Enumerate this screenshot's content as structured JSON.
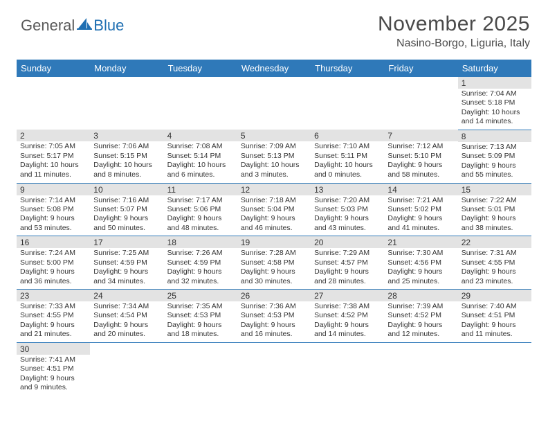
{
  "logo": {
    "text1": "General",
    "text2": "Blue"
  },
  "title": "November 2025",
  "location": "Nasino-Borgo, Liguria, Italy",
  "colors": {
    "header_bg": "#2f79b9",
    "header_text": "#ffffff",
    "daynum_bg": "#e3e3e3",
    "cell_border": "#2f79b9",
    "body_text": "#333333",
    "title_text": "#4a4a4a",
    "logo_gray": "#5a5a5a",
    "logo_blue": "#1f6fb2"
  },
  "weekdays": [
    "Sunday",
    "Monday",
    "Tuesday",
    "Wednesday",
    "Thursday",
    "Friday",
    "Saturday"
  ],
  "weeks": [
    [
      null,
      null,
      null,
      null,
      null,
      null,
      {
        "n": "1",
        "sr": "7:04 AM",
        "ss": "5:18 PM",
        "dl": "10 hours and 14 minutes."
      }
    ],
    [
      {
        "n": "2",
        "sr": "7:05 AM",
        "ss": "5:17 PM",
        "dl": "10 hours and 11 minutes."
      },
      {
        "n": "3",
        "sr": "7:06 AM",
        "ss": "5:15 PM",
        "dl": "10 hours and 8 minutes."
      },
      {
        "n": "4",
        "sr": "7:08 AM",
        "ss": "5:14 PM",
        "dl": "10 hours and 6 minutes."
      },
      {
        "n": "5",
        "sr": "7:09 AM",
        "ss": "5:13 PM",
        "dl": "10 hours and 3 minutes."
      },
      {
        "n": "6",
        "sr": "7:10 AM",
        "ss": "5:11 PM",
        "dl": "10 hours and 0 minutes."
      },
      {
        "n": "7",
        "sr": "7:12 AM",
        "ss": "5:10 PM",
        "dl": "9 hours and 58 minutes."
      },
      {
        "n": "8",
        "sr": "7:13 AM",
        "ss": "5:09 PM",
        "dl": "9 hours and 55 minutes."
      }
    ],
    [
      {
        "n": "9",
        "sr": "7:14 AM",
        "ss": "5:08 PM",
        "dl": "9 hours and 53 minutes."
      },
      {
        "n": "10",
        "sr": "7:16 AM",
        "ss": "5:07 PM",
        "dl": "9 hours and 50 minutes."
      },
      {
        "n": "11",
        "sr": "7:17 AM",
        "ss": "5:06 PM",
        "dl": "9 hours and 48 minutes."
      },
      {
        "n": "12",
        "sr": "7:18 AM",
        "ss": "5:04 PM",
        "dl": "9 hours and 46 minutes."
      },
      {
        "n": "13",
        "sr": "7:20 AM",
        "ss": "5:03 PM",
        "dl": "9 hours and 43 minutes."
      },
      {
        "n": "14",
        "sr": "7:21 AM",
        "ss": "5:02 PM",
        "dl": "9 hours and 41 minutes."
      },
      {
        "n": "15",
        "sr": "7:22 AM",
        "ss": "5:01 PM",
        "dl": "9 hours and 38 minutes."
      }
    ],
    [
      {
        "n": "16",
        "sr": "7:24 AM",
        "ss": "5:00 PM",
        "dl": "9 hours and 36 minutes."
      },
      {
        "n": "17",
        "sr": "7:25 AM",
        "ss": "4:59 PM",
        "dl": "9 hours and 34 minutes."
      },
      {
        "n": "18",
        "sr": "7:26 AM",
        "ss": "4:59 PM",
        "dl": "9 hours and 32 minutes."
      },
      {
        "n": "19",
        "sr": "7:28 AM",
        "ss": "4:58 PM",
        "dl": "9 hours and 30 minutes."
      },
      {
        "n": "20",
        "sr": "7:29 AM",
        "ss": "4:57 PM",
        "dl": "9 hours and 28 minutes."
      },
      {
        "n": "21",
        "sr": "7:30 AM",
        "ss": "4:56 PM",
        "dl": "9 hours and 25 minutes."
      },
      {
        "n": "22",
        "sr": "7:31 AM",
        "ss": "4:55 PM",
        "dl": "9 hours and 23 minutes."
      }
    ],
    [
      {
        "n": "23",
        "sr": "7:33 AM",
        "ss": "4:55 PM",
        "dl": "9 hours and 21 minutes."
      },
      {
        "n": "24",
        "sr": "7:34 AM",
        "ss": "4:54 PM",
        "dl": "9 hours and 20 minutes."
      },
      {
        "n": "25",
        "sr": "7:35 AM",
        "ss": "4:53 PM",
        "dl": "9 hours and 18 minutes."
      },
      {
        "n": "26",
        "sr": "7:36 AM",
        "ss": "4:53 PM",
        "dl": "9 hours and 16 minutes."
      },
      {
        "n": "27",
        "sr": "7:38 AM",
        "ss": "4:52 PM",
        "dl": "9 hours and 14 minutes."
      },
      {
        "n": "28",
        "sr": "7:39 AM",
        "ss": "4:52 PM",
        "dl": "9 hours and 12 minutes."
      },
      {
        "n": "29",
        "sr": "7:40 AM",
        "ss": "4:51 PM",
        "dl": "9 hours and 11 minutes."
      }
    ],
    [
      {
        "n": "30",
        "sr": "7:41 AM",
        "ss": "4:51 PM",
        "dl": "9 hours and 9 minutes."
      },
      null,
      null,
      null,
      null,
      null,
      null
    ]
  ],
  "labels": {
    "sunrise": "Sunrise:",
    "sunset": "Sunset:",
    "daylight": "Daylight:"
  }
}
